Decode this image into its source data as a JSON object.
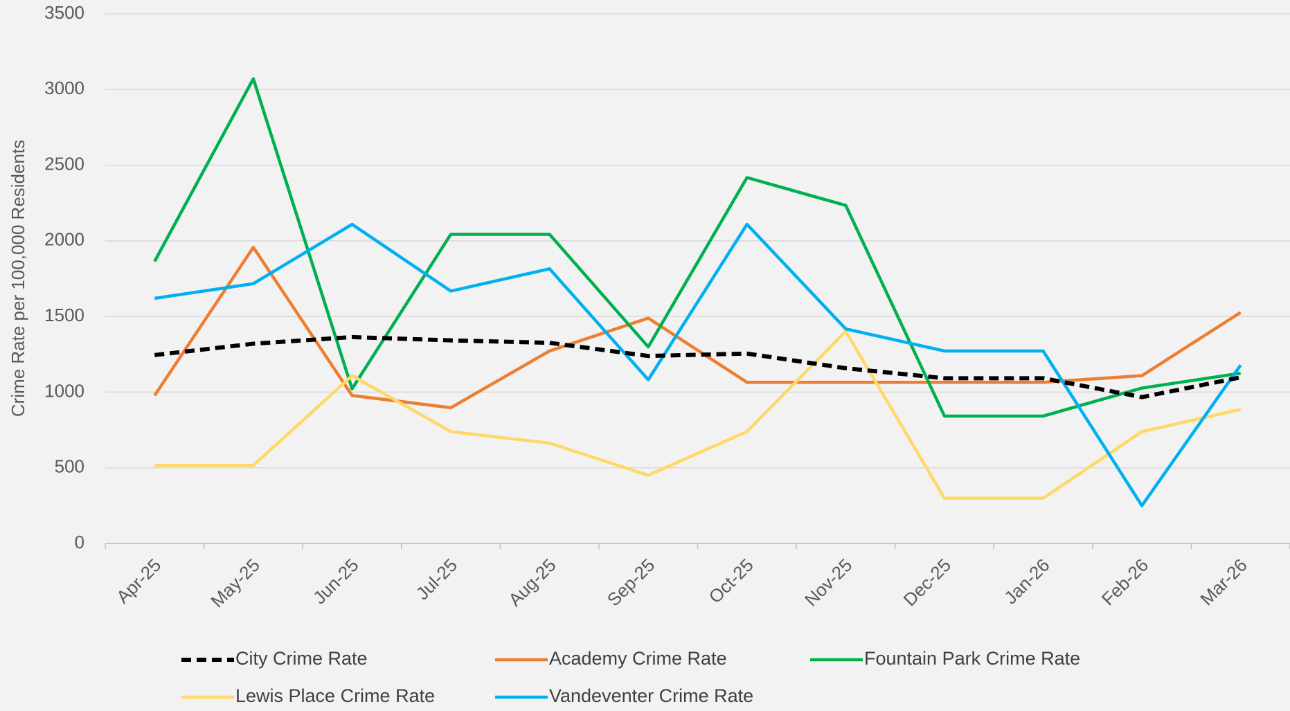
{
  "chart_data": {
    "type": "line",
    "y_label": "Crime Rate per 100,000 Residents",
    "categories": [
      "Apr-25",
      "May-25",
      "Jun-25",
      "Jul-25",
      "Aug-25",
      "Sep-25",
      "Oct-25",
      "Nov-25",
      "Dec-25",
      "Jan-26",
      "Feb-26",
      "Mar-26"
    ],
    "series": [
      {
        "name": "City Crime Rate",
        "color": "#000000",
        "dashed": true,
        "values": [
          1245,
          1320,
          1364,
          1342,
          1326,
          1239,
          1255,
          1158,
          1092,
          1092,
          967,
          1098
        ]
      },
      {
        "name": "Academy Crime Rate",
        "color": "#ed7d31",
        "values": [
          978,
          1957,
          978,
          897,
          1272,
          1489,
          1065,
          1065,
          1065,
          1065,
          1109,
          1527
        ]
      },
      {
        "name": "Fountain Park Crime Rate",
        "color": "#00b050",
        "values": [
          1864,
          3071,
          1022,
          2043,
          2043,
          1299,
          2418,
          2234,
          842,
          842,
          1027,
          1125
        ]
      },
      {
        "name": "Lewis Place Crime Rate",
        "color": "#ffd966",
        "values": [
          516,
          516,
          1109,
          739,
          663,
          451,
          739,
          1402,
          299,
          299,
          739,
          886
        ]
      },
      {
        "name": "Vandeventer Crime Rate",
        "color": "#00b0f0",
        "values": [
          1620,
          1717,
          2109,
          1668,
          1815,
          1082,
          2109,
          1418,
          1272,
          1272,
          250,
          1179
        ]
      }
    ],
    "ylim": [
      0,
      3500
    ],
    "yticks": [
      0,
      500,
      1000,
      1500,
      2000,
      2500,
      3000,
      3500
    ],
    "grid": true
  }
}
